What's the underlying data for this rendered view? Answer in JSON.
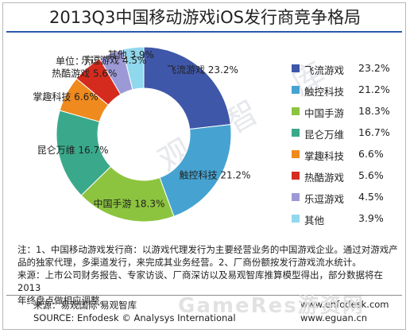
{
  "chart_data": {
    "type": "pie",
    "title": "2013Q3中国移动游戏iOS发行商竞争格局",
    "unit_label": "单位：万元",
    "categories": [
      "飞流游戏",
      "触控科技",
      "中国手游",
      "昆仑万维",
      "掌趣科技",
      "热酷游戏",
      "乐逗游戏",
      "其他"
    ],
    "values": [
      23.2,
      21.2,
      18.3,
      16.7,
      6.6,
      5.6,
      4.5,
      3.9
    ],
    "value_labels": [
      "23.2%",
      "21.2%",
      "18.3%",
      "16.7%",
      "6.6%",
      "5.6%",
      "4.5%",
      "3.9%"
    ],
    "colors": [
      "#3f57a8",
      "#46a3d1",
      "#8dc43f",
      "#3aa98b",
      "#ee8a1e",
      "#d52b1e",
      "#9c9ad6",
      "#90d8ee"
    ],
    "legend_position": "right",
    "donut": true
  },
  "notes": {
    "line1": "注：1、中国移动游戏发行商：以游戏代理发行为主要经营业务的中国游戏企业。通过对游戏产",
    "line2": "品的独家代理，多渠道发行，来完成其业务经营。2、厂商份额按发行游戏流水统计。",
    "line3": "来源：上市公司财务报告、专家访谈、厂商深访以及易观智库推算模型得出，部分数据将在2013",
    "line4": "年终盘点做相应调整。"
  },
  "footer": {
    "source_cn": "来源：易观国际·易观智库",
    "source_en": "SOURCE: Enfodesk © Analysys International",
    "site_1": "www.enfodesk.com",
    "site_2": "www.eguan.cn"
  },
  "watermark": {
    "text": "易 观 智 库",
    "bottom": "GameRes游资网"
  }
}
